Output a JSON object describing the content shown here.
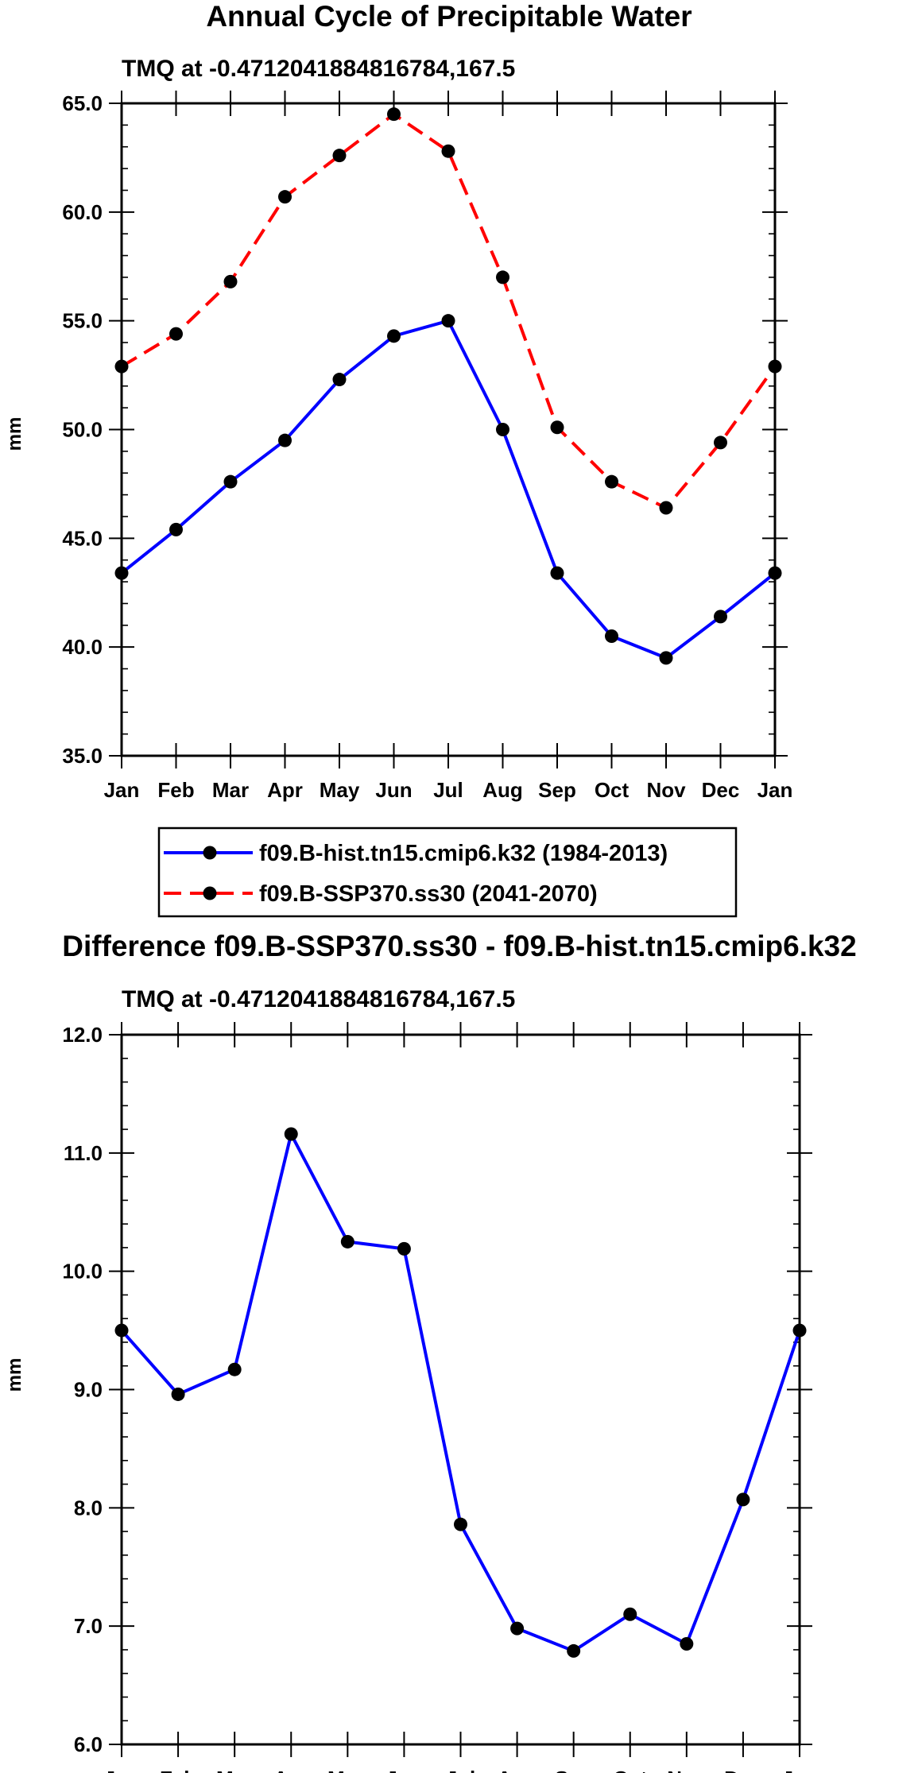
{
  "chart_data": [
    {
      "type": "line",
      "title": "Annual Cycle of Precipitable Water",
      "subtitle": "TMQ at -0.4712041884816784,167.5",
      "xlabel": "",
      "ylabel": "mm",
      "categories": [
        "Jan",
        "Feb",
        "Mar",
        "Apr",
        "May",
        "Jun",
        "Jul",
        "Aug",
        "Sep",
        "Oct",
        "Nov",
        "Dec",
        "Jan"
      ],
      "ylim": [
        35.0,
        65.0
      ],
      "yticks": [
        "35.0",
        "40.0",
        "45.0",
        "50.0",
        "55.0",
        "60.0",
        "65.0"
      ],
      "grid": false,
      "legend_position": "bottom",
      "series": [
        {
          "name": "f09.B-hist.tn15.cmip6.k32 (1984-2013)",
          "color": "#0000ff",
          "dash": "solid",
          "values": [
            43.4,
            45.4,
            47.6,
            49.5,
            52.3,
            54.3,
            55.0,
            50.0,
            43.4,
            40.5,
            39.5,
            41.4,
            43.4
          ]
        },
        {
          "name": "f09.B-SSP370.ss30 (2041-2070)",
          "color": "#ff0000",
          "dash": "dashed",
          "values": [
            52.9,
            54.4,
            56.8,
            60.7,
            62.6,
            64.5,
            62.8,
            57.0,
            50.1,
            47.6,
            46.4,
            49.4,
            52.9
          ]
        }
      ]
    },
    {
      "type": "line",
      "title": "Difference f09.B-SSP370.ss30 - f09.B-hist.tn15.cmip6.k32",
      "subtitle": "TMQ at -0.4712041884816784,167.5",
      "xlabel": "",
      "ylabel": "mm",
      "categories": [
        "Jan",
        "Feb",
        "Mar",
        "Apr",
        "May",
        "Jun",
        "Jul",
        "Aug",
        "Sep",
        "Oct",
        "Nov",
        "Dec",
        "Jan"
      ],
      "ylim": [
        6.0,
        12.0
      ],
      "yticks": [
        "6.0",
        "7.0",
        "8.0",
        "9.0",
        "10.0",
        "11.0",
        "12.0"
      ],
      "grid": false,
      "series": [
        {
          "name": "Difference",
          "color": "#0000ff",
          "dash": "solid",
          "values": [
            9.5,
            8.96,
            9.17,
            11.16,
            10.25,
            10.19,
            7.86,
            6.98,
            6.79,
            7.1,
            6.85,
            8.07,
            9.5
          ]
        }
      ]
    }
  ]
}
